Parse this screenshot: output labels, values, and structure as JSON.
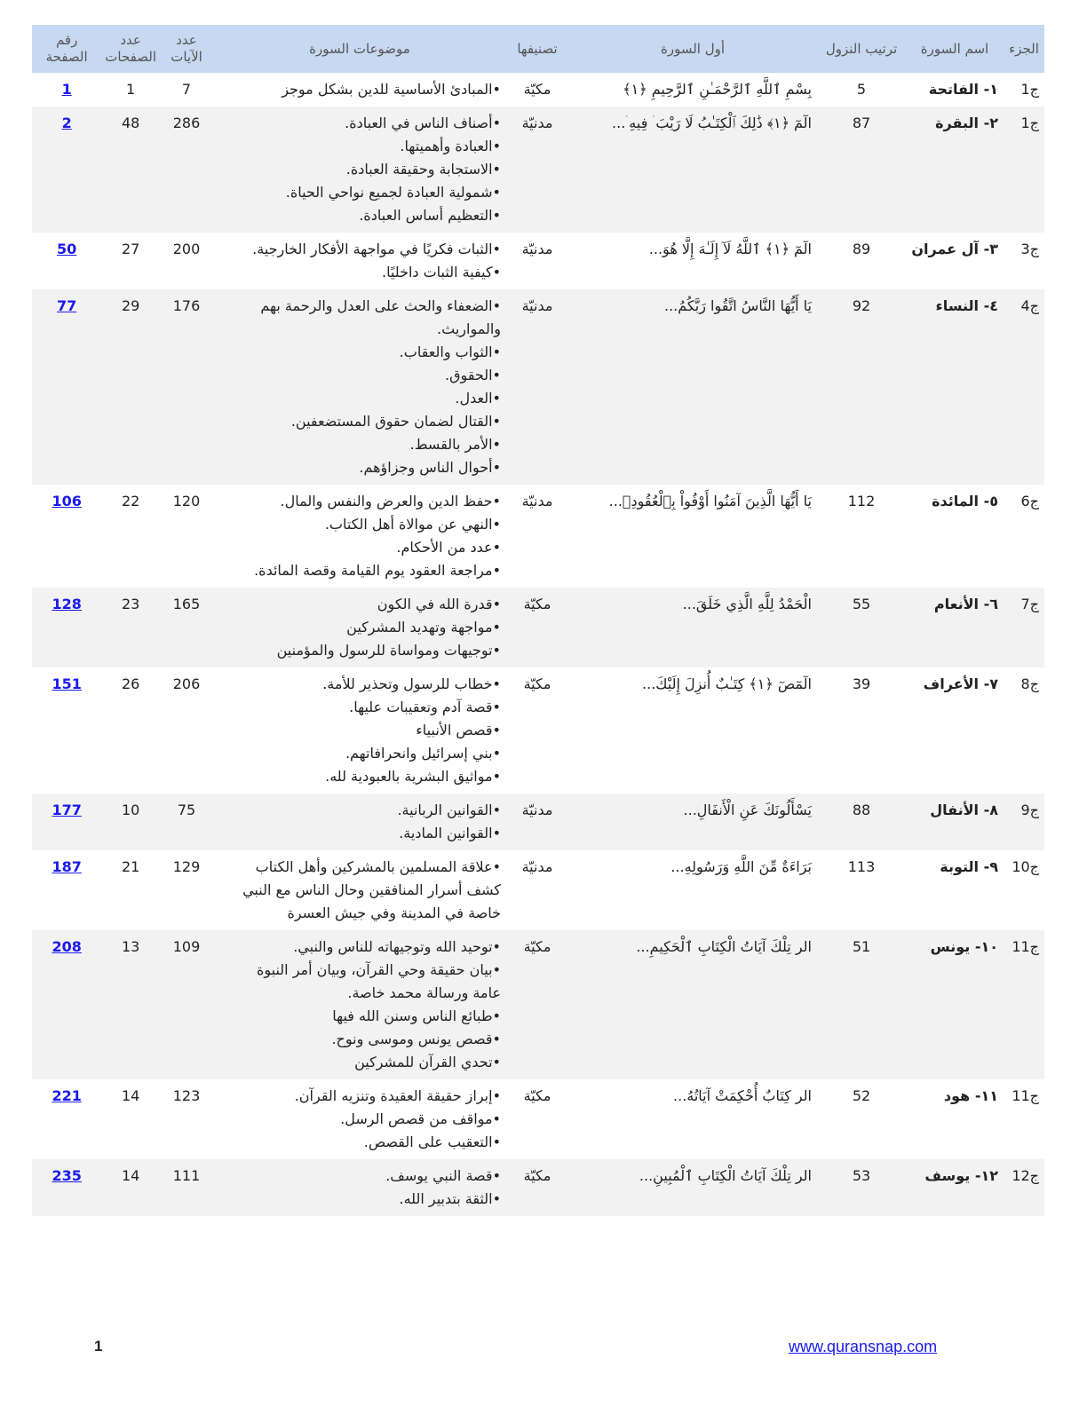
{
  "headers": {
    "juz": "الجزء",
    "name": "اسم السورة",
    "order": "ترتيب النزول",
    "first": "أول السورة",
    "classification": "تصنيفها",
    "topics": "موضوعات السورة",
    "ayat": "عدد الآيات",
    "pages": "عدد الصفحات",
    "page": "رقم الصفحة"
  },
  "rows": [
    {
      "juz": "ج1",
      "name": "١- الفاتحة",
      "order": "5",
      "first": "بِسْمِ ٱللَّهِ ٱلرَّحْمَـٰنِ ٱلرَّحِيمِ ﴿١﴾",
      "classification": "مكيّة",
      "topics": [
        "•المبادئ الأساسية للدين بشكل موجز"
      ],
      "ayat": "7",
      "pages": "1",
      "page": "1"
    },
    {
      "juz": "ج1",
      "name": "٢- البقرة",
      "order": "87",
      "first": "الٓمٓ ﴿١﴾ ذَٰلِكَ ٱلْكِتَـٰبُ لَا رَيْبَ ۛ فِيهِ ۛ...",
      "classification": "مدنيّة",
      "topics": [
        "•أصناف الناس في العبادة.",
        "•العبادة وأهميتها.",
        "•الاستجابة وحقيقة العبادة.",
        "•شمولية العبادة لجميع نواحي الحياة.",
        "•التعظيم أساس العبادة."
      ],
      "ayat": "286",
      "pages": "48",
      "page": "2"
    },
    {
      "juz": "ج3",
      "name": "٣- آل عمران",
      "order": "89",
      "first": "الٓمٓ ﴿١﴾ ٱللَّهُ لَآ إِلَـٰهَ إِلَّا هُوَ...",
      "classification": "مدنيّة",
      "topics": [
        "•الثبات فكريًا في مواجهة الأفكار الخارجية.",
        "•كيفية الثبات داخليًا."
      ],
      "ayat": "200",
      "pages": "27",
      "page": "50"
    },
    {
      "juz": "ج4",
      "name": "٤- النساء",
      "order": "92",
      "first": "يَا أَيُّهَا النَّاسُ اتَّقُوا رَبَّكُمُ...",
      "classification": "مدنيّة",
      "topics": [
        "•الضعفاء والحث على العدل والرحمة بهم والمواريث.",
        "•الثواب والعقاب.",
        "•الحقوق.",
        "•العدل.",
        "•القتال لضمان حقوق المستضعفين.",
        "•الأمر بالقسط.",
        "•أحوال الناس وجزاؤهم."
      ],
      "ayat": "176",
      "pages": "29",
      "page": "77"
    },
    {
      "juz": "ج6",
      "name": "٥- المائدة",
      "order": "112",
      "first": "يَا أَيُّهَا الَّذِينَ آمَنُوا أَوْفُواْ بِٱلْعُقُودِۚ...",
      "classification": "مدنيّة",
      "topics": [
        "•حفظ الدين والعرض والنفس والمال.",
        "•النهي عن موالاة أهل الكتاب.",
        "•عدد من الأحكام.",
        "•مراجعة العقود يوم القيامة وقصة المائدة."
      ],
      "ayat": "120",
      "pages": "22",
      "page": "106"
    },
    {
      "juz": "ج7",
      "name": "٦- الأنعام",
      "order": "55",
      "first": "الْحَمْدُ لِلَّهِ الَّذِي خَلَقَ...",
      "classification": "مكيّة",
      "topics": [
        "•قدرة الله في الكون",
        "•مواجهة وتهديد المشركين",
        "•توجيهات ومواساة للرسول والمؤمنين"
      ],
      "ayat": "165",
      "pages": "23",
      "page": "128"
    },
    {
      "juz": "ج8",
      "name": "٧- الأعراف",
      "order": "39",
      "first": "الٓمٓصٓ ﴿١﴾ كِتَـٰبٌ أُنزِلَ إِلَيْكَ...",
      "classification": "مكيّة",
      "topics": [
        "•خطاب للرسول وتحذير للأمة.",
        "•قصة آدم وتعقيبات عليها.",
        "•قصص الأنبياء",
        "•بني إسرائيل وانحرافاتهم.",
        "•مواثيق البشرية بالعبودية لله."
      ],
      "ayat": "206",
      "pages": "26",
      "page": "151"
    },
    {
      "juz": "ج9",
      "name": "٨- الأنفال",
      "order": "88",
      "first": "يَسْأَلُونَكَ عَنِ الْأَنفَالِ...",
      "classification": "مدنيّة",
      "topics": [
        "•القوانين الربانية.",
        "•القوانين المادية."
      ],
      "ayat": "75",
      "pages": "10",
      "page": "177"
    },
    {
      "juz": "ج10",
      "name": "٩- التوبة",
      "order": "113",
      "first": "بَرَاءَةٌ مِّنَ اللَّهِ وَرَسُولِهِ...",
      "classification": "مدنيّة",
      "topics": [
        "•علاقة المسلمين بالمشركين وأهل الكتاب",
        "كشف أسرار المنافقين وحال الناس مع النبي",
        "خاصة في المدينة وفي جيش العسرة"
      ],
      "ayat": "129",
      "pages": "21",
      "page": "187"
    },
    {
      "juz": "ج11",
      "name": "١٠- يونس",
      "order": "51",
      "first": "الر تِلْكَ آيَاتُ الْكِتَابِ ٱلْحَكِيمِ...",
      "classification": "مكيّة",
      "topics": [
        "•توحيد الله وتوجيهاته للناس والنبي.",
        "•بيان حقيقة وحي القرآن، وبيان أمر النبوة",
        "عامة ورسالة محمد خاصة.",
        "•طبائع الناس وسنن الله فيها",
        "•قصص يونس وموسى ونوح.",
        "•تحدي القرآن للمشركين"
      ],
      "ayat": "109",
      "pages": "13",
      "page": "208"
    },
    {
      "juz": "ج11",
      "name": "١١- هود",
      "order": "52",
      "first": "الر كِتَابٌ أُحْكِمَتْ آيَاتُهُ...",
      "classification": "مكيّة",
      "topics": [
        "•إبراز حقيقة العقيدة وتنزيه القرآن.",
        "•مواقف من قصص الرسل.",
        "•التعقيب على القصص."
      ],
      "ayat": "123",
      "pages": "14",
      "page": "221"
    },
    {
      "juz": "ج12",
      "name": "١٢- يوسف",
      "order": "53",
      "first": "الر تِلْكَ آيَاتُ الْكِتَابِ ٱلْمُبِينِ...",
      "classification": "مكيّة",
      "topics": [
        "•قصة النبي يوسف.",
        "•الثقة بتدبير الله."
      ],
      "ayat": "111",
      "pages": "14",
      "page": "235"
    }
  ],
  "footer": {
    "page_number": "1",
    "website": "www.quransnap.com"
  },
  "colors": {
    "header_bg": "#c6d9f1",
    "stripe_bg": "#f2f2f2",
    "link": "#1a1aee"
  }
}
